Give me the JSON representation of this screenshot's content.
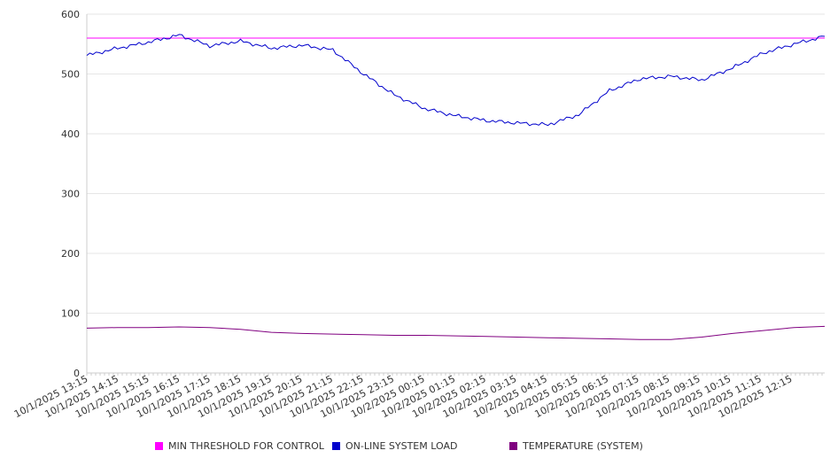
{
  "chart_data": {
    "type": "line",
    "title": "",
    "xlabel": "",
    "ylabel": "",
    "ylim": [
      0,
      600
    ],
    "y_ticks": [
      0,
      100,
      200,
      300,
      400,
      500,
      600
    ],
    "grid": "horizontal",
    "legend_position": "bottom",
    "x_tick_labels": [
      "10/1/2025 13:15",
      "10/1/2025 14:15",
      "10/1/2025 15:15",
      "10/1/2025 16:15",
      "10/1/2025 17:15",
      "10/1/2025 18:15",
      "10/1/2025 19:15",
      "10/1/2025 20:15",
      "10/1/2025 21:15",
      "10/1/2025 22:15",
      "10/1/2025 23:15",
      "10/2/2025 00:15",
      "10/2/2025 01:15",
      "10/2/2025 02:15",
      "10/2/2025 03:15",
      "10/2/2025 04:15",
      "10/2/2025 05:15",
      "10/2/2025 06:15",
      "10/2/2025 07:15",
      "10/2/2025 08:15",
      "10/2/2025 09:15",
      "10/2/2025 10:15",
      "10/2/2025 11:15",
      "10/2/2025 12:15"
    ],
    "series": [
      {
        "name": "MIN THRESHOLD FOR CONTROL",
        "color": "#ff00ff",
        "values": [
          560,
          560,
          560,
          560,
          560,
          560,
          560,
          560,
          560,
          560,
          560,
          560,
          560,
          560,
          560,
          560,
          560,
          560,
          560,
          560,
          560,
          560,
          560,
          560,
          560
        ]
      },
      {
        "name": "ON-LINE SYSTEM LOAD",
        "color": "#0000cc",
        "values": [
          531,
          543,
          553,
          565,
          547,
          555,
          543,
          548,
          540,
          500,
          465,
          442,
          430,
          422,
          418,
          415,
          432,
          472,
          492,
          496,
          490,
          510,
          535,
          550,
          563
        ]
      },
      {
        "name": "TEMPERATURE (SYSTEM)",
        "color": "#800080",
        "values": [
          75,
          76,
          76,
          77,
          76,
          73,
          68,
          66,
          65,
          64,
          63,
          63,
          62,
          61,
          60,
          59,
          58,
          57,
          56,
          56,
          60,
          66,
          71,
          76,
          78
        ]
      }
    ]
  }
}
